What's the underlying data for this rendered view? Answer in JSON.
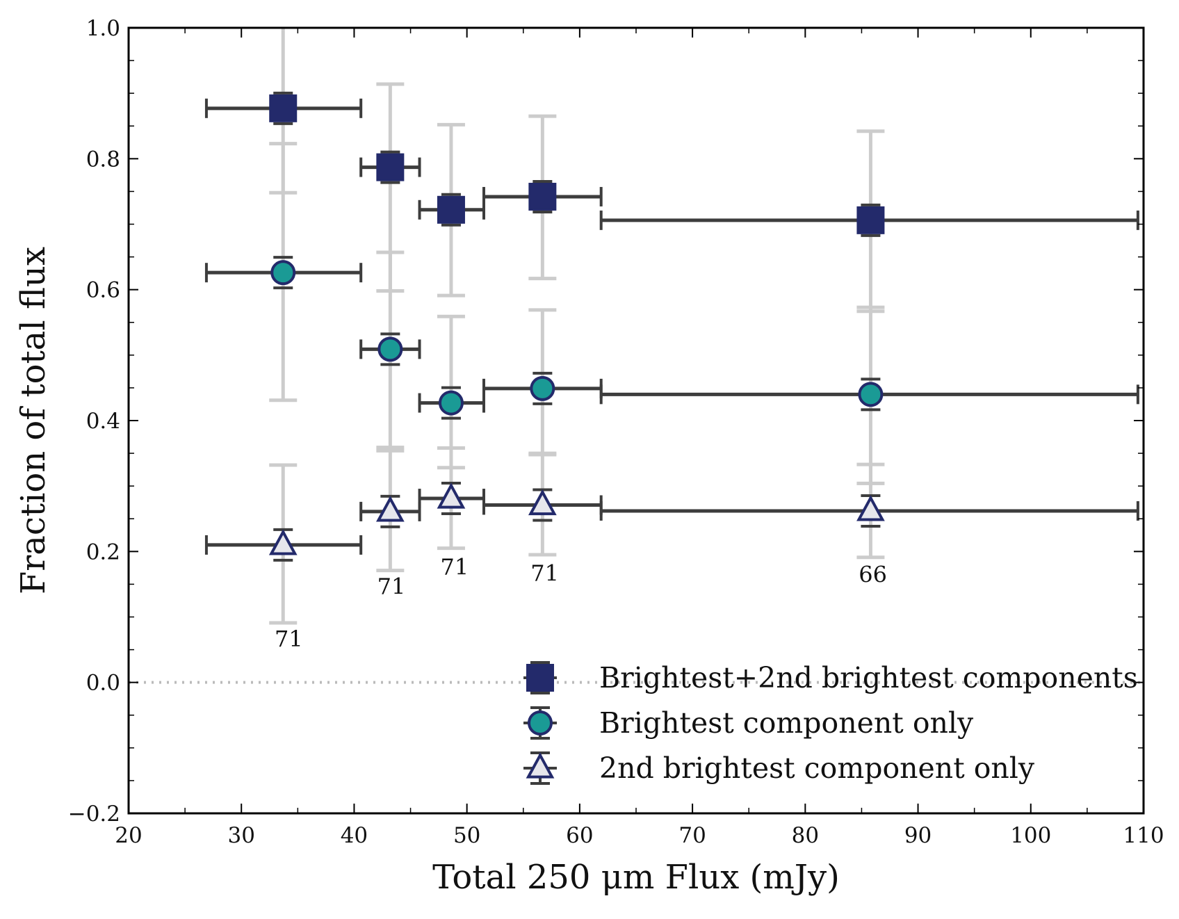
{
  "chart_data": {
    "type": "scatter",
    "xlabel": "Total 250 μm Flux (mJy)",
    "ylabel": "Fraction of total flux",
    "xlim": [
      20,
      110
    ],
    "ylim": [
      -0.2,
      1.0
    ],
    "xticks": [
      "20",
      "30",
      "40",
      "50",
      "60",
      "70",
      "80",
      "90",
      "100",
      "110"
    ],
    "yticks": [
      "−0.2",
      "0.0",
      "0.2",
      "0.4",
      "0.6",
      "0.8",
      "1.0"
    ],
    "reference_line_y": 0.0,
    "x_bins": [
      {
        "x": 33.7,
        "xmin": 26.9,
        "xmax": 40.6
      },
      {
        "x": 43.2,
        "xmin": 40.6,
        "xmax": 45.8
      },
      {
        "x": 48.6,
        "xmin": 45.8,
        "xmax": 51.5
      },
      {
        "x": 56.7,
        "xmin": 51.5,
        "xmax": 61.9
      },
      {
        "x": 85.8,
        "xmin": 61.9,
        "xmax": 109.5
      }
    ],
    "series": [
      {
        "name": "Brightest+2nd brightest components",
        "marker": "square",
        "color": "#232a6b",
        "y": [
          0.877,
          0.787,
          0.722,
          0.742,
          0.706
        ],
        "y_scatter_low": [
          0.748,
          0.598,
          0.591,
          0.617,
          0.567
        ],
        "y_scatter_high": [
          1.0,
          0.914,
          0.852,
          0.865,
          0.842
        ]
      },
      {
        "name": "Brightest component only",
        "marker": "circle",
        "color": "#1a9a95",
        "y": [
          0.626,
          0.509,
          0.427,
          0.449,
          0.44
        ],
        "y_scatter_low": [
          0.431,
          0.359,
          0.328,
          0.35,
          0.304
        ],
        "y_scatter_high": [
          0.823,
          0.657,
          0.559,
          0.569,
          0.573
        ]
      },
      {
        "name": "2nd brightest component only",
        "marker": "triangle",
        "color": "#e6e6ec",
        "y": [
          0.21,
          0.261,
          0.281,
          0.271,
          0.262
        ],
        "y_scatter_low": [
          0.091,
          0.171,
          0.205,
          0.195,
          0.191
        ],
        "y_scatter_high": [
          0.332,
          0.354,
          0.358,
          0.348,
          0.333
        ]
      }
    ],
    "counts": [
      {
        "text": "71",
        "x": 34.2,
        "y": 0.055
      },
      {
        "text": "71",
        "x": 43.3,
        "y": 0.135
      },
      {
        "text": "71",
        "x": 48.9,
        "y": 0.165
      },
      {
        "text": "71",
        "x": 56.9,
        "y": 0.155
      },
      {
        "text": "66",
        "x": 86.0,
        "y": 0.153
      }
    ],
    "legend": {
      "position": "lower-right",
      "entries": [
        "Brightest+2nd brightest components",
        "Brightest component only",
        "2nd brightest component only"
      ]
    },
    "colors": {
      "binbar": "#3d3d3d",
      "scatterbar": "#cccccc",
      "marker_edge": "#232a6b",
      "refline": "#bbbbbb"
    }
  }
}
